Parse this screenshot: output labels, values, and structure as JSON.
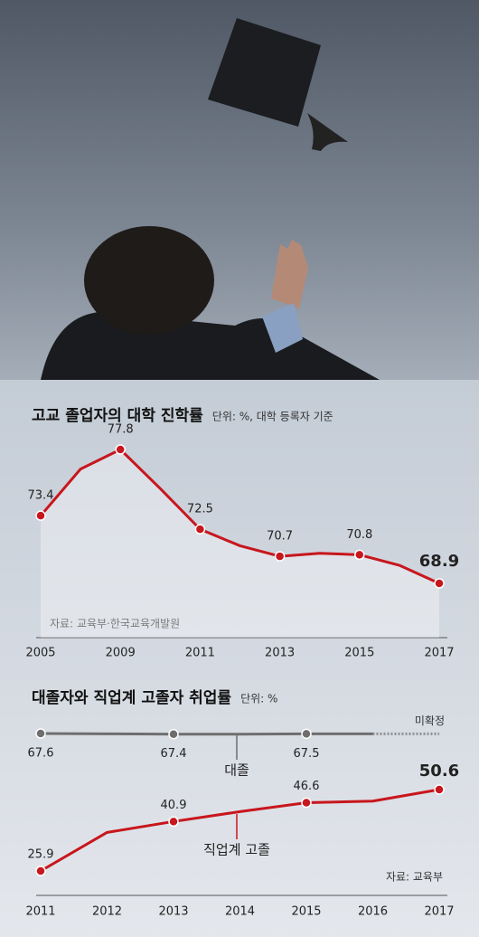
{
  "chart_data": [
    {
      "type": "line",
      "title": "고교 졸업자의 대학 진학률",
      "subtitle": "단위: %, 대학 등록자 기준",
      "source": "자료: 교육부·한국교육개발원",
      "categories": [
        "2005",
        null,
        "2009",
        null,
        "2011",
        null,
        "2013",
        null,
        "2015",
        null,
        "2017"
      ],
      "values": [
        73.4,
        76.5,
        77.8,
        75.2,
        72.5,
        71.4,
        70.7,
        70.9,
        70.8,
        70.1,
        68.9
      ],
      "value_labels": [
        "73.4",
        null,
        "77.8",
        null,
        "72.5",
        null,
        "70.7",
        null,
        "70.8",
        null,
        "68.9"
      ],
      "color": "#c8161d"
    },
    {
      "type": "line",
      "title": "대졸자와 직업계 고졸자 취업률",
      "subtitle": "단위: %",
      "source": "자료: 교육부",
      "annotation": "미확정",
      "categories": [
        "2011",
        "2012",
        "2013",
        "2014",
        "2015",
        "2016",
        "2017"
      ],
      "series": [
        {
          "name": "대졸",
          "color": "#6e6e6e",
          "values": [
            67.6,
            67.5,
            67.4,
            67.4,
            67.5,
            67.5,
            null
          ],
          "value_labels": [
            "67.6",
            null,
            "67.4",
            null,
            "67.5",
            null,
            null
          ]
        },
        {
          "name": "직업계 고졸",
          "color": "#c8161d",
          "values": [
            25.9,
            37.6,
            40.9,
            43.9,
            46.6,
            47.1,
            50.6
          ],
          "value_labels": [
            "25.9",
            null,
            "40.9",
            null,
            "46.6",
            null,
            "50.6"
          ]
        }
      ]
    }
  ]
}
